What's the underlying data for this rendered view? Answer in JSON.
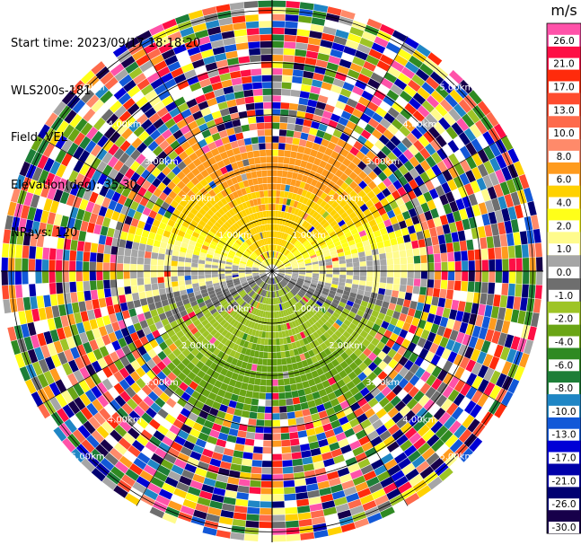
{
  "info": {
    "start_time": "Start time: 2023/09/17 18:18:20",
    "instrument": "WLS200s-181",
    "field": "Field: VEL",
    "elevation": "Elevation(deg): 35.30",
    "nrays": "NRays: 120"
  },
  "chart_data": {
    "type": "heatmap",
    "projection": "PPI (polar)",
    "field": "VEL",
    "units": "m/s",
    "nrays": 120,
    "elevation_deg": 35.3,
    "range_rings_km": [
      "1.00km",
      "2.00km",
      "3.00km",
      "4.00km",
      "5.00km"
    ],
    "range_ring_values_km": [
      1,
      2,
      3,
      4,
      5
    ],
    "colorbar": {
      "label": "m/s",
      "ticks": [
        "26.0",
        "21.0",
        "17.0",
        "13.0",
        "10.0",
        "8.0",
        "6.0",
        "4.0",
        "2.0",
        "1.0",
        "0.0",
        "-1.0",
        "-2.0",
        "-4.0",
        "-6.0",
        "-8.0",
        "-10.0",
        "-13.0",
        "-17.0",
        "-21.0",
        "-26.0",
        "-30.0"
      ],
      "colors": [
        "#ff52a9",
        "#fe0f45",
        "#ff2b0c",
        "#ff4b2e",
        "#fe6a4b",
        "#ff8a6a",
        "#ff9b1e",
        "#ffd100",
        "#ffff19",
        "#fffb8c",
        "#a6a6a6",
        "#6e6e6e",
        "#9ec426",
        "#6aa515",
        "#2f8a22",
        "#1d7e37",
        "#1f86c5",
        "#1258d8",
        "#0000d6",
        "#0000aa",
        "#000072",
        "#17004a"
      ]
    },
    "pattern": {
      "near_range_km": 2.3,
      "north_half": "positive velocities (yellow to orange, about 1 to 8 m/s)",
      "south_half": "negative velocities (green, about -2 to -8 m/s)",
      "east_west": "near zero (grey)",
      "far_range": "noise (mixed colors)"
    }
  }
}
